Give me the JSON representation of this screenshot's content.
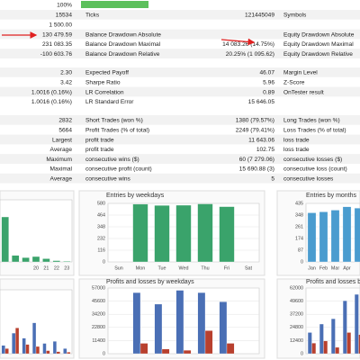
{
  "report": {
    "progress": {
      "value": 100,
      "label": "100%"
    },
    "sections": [
      [
        [
          "15534",
          "Ticks",
          "121445049",
          "Symbols"
        ],
        [
          "1 500.00",
          null,
          null,
          null
        ],
        [
          "130 479.59",
          "Balance Drawdown Absolute",
          null,
          "Equity Drawdown Absolute"
        ],
        [
          "231 083.35",
          "Balance Drawdown Maximal",
          "14 083.26 (14.75%)",
          "Equity Drawdown Maximal"
        ],
        [
          "-100 603.76",
          "Balance Drawdown Relative",
          "20.25% (1 095.62)",
          "Equity Drawdown Relative"
        ]
      ],
      [
        [
          "2.30",
          "Expected Payoff",
          "46.07",
          "Margin Level"
        ],
        [
          "3.42",
          "Sharpe Ratio",
          "5.96",
          "Z-Score"
        ],
        [
          "1.0016 (0.16%)",
          "LR Correlation",
          "0.89",
          "OnTester result"
        ],
        [
          "1.0016 (0.16%)",
          "LR Standard Error",
          "15 646.05",
          null
        ]
      ],
      [
        [
          "2832",
          "Short Trades (won %)",
          "1380 (79.57%)",
          "Long Trades (won %)"
        ],
        [
          "5664",
          "Profit Trades (% of total)",
          "2249 (79.41%)",
          "Loss Trades (% of total)"
        ],
        [
          "Largest",
          "profit trade",
          "11 643.06",
          "loss trade"
        ],
        [
          "Average",
          "profit trade",
          "102.75",
          "loss trade"
        ],
        [
          "Maximum",
          "consecutive wins ($)",
          "60 (7 279.06)",
          "consecutive losses ($)"
        ],
        [
          "Maximal",
          "consecutive profit (count)",
          "15 690.88 (3)",
          "consecutive loss (count)"
        ],
        [
          "Average",
          "consecutive wins",
          "5",
          "consecutive losses"
        ]
      ]
    ]
  },
  "chart_data": [
    {
      "type": "bar",
      "categories": [
        null,
        null,
        null,
        "20",
        "21",
        "22",
        "23"
      ],
      "ylim": [
        0,
        580
      ],
      "series": [
        {
          "color": "#3aa36b",
          "values": [
            420,
            60,
            40,
            50,
            30,
            12,
            6
          ]
        }
      ]
    },
    {
      "type": "bar",
      "title": "Entries by weekdays",
      "categories": [
        "Sun",
        "Mon",
        "Tue",
        "Wed",
        "Thu",
        "Fri",
        "Sat"
      ],
      "ylim": [
        0,
        580
      ],
      "yticks": [
        0,
        116,
        232,
        348,
        464,
        580
      ],
      "grid": true,
      "series": [
        {
          "color": "#3aa36b",
          "values": [
            0,
            572,
            560,
            562,
            575,
            548,
            0
          ]
        }
      ]
    },
    {
      "type": "bar",
      "title": "Entries by months",
      "categories": [
        "Jan",
        "Feb",
        "Mar",
        "Apr",
        null
      ],
      "ylim": [
        0,
        435
      ],
      "yticks": [
        0,
        87,
        174,
        261,
        348,
        435
      ],
      "grid": true,
      "series": [
        {
          "color": "#4a9ccf",
          "values": [
            365,
            372,
            385,
            410,
            400
          ]
        }
      ]
    },
    {
      "type": "bar",
      "categories": [
        null,
        null,
        null,
        null,
        null,
        null,
        null
      ],
      "ylim": [
        0,
        62000
      ],
      "series": [
        {
          "color": "#4a6fb5",
          "values": [
            8000,
            20000,
            15000,
            30000,
            10000,
            12000,
            5000
          ]
        },
        {
          "color": "#b8402e",
          "values": [
            5000,
            25000,
            9000,
            7000,
            3000,
            2000,
            1500
          ]
        }
      ]
    },
    {
      "type": "bar",
      "title": "Profits and losses by weekdays",
      "categories": [
        null,
        null,
        null,
        null,
        null,
        null,
        null
      ],
      "ylim": [
        0,
        57000
      ],
      "yticks": [
        0,
        11400,
        22800,
        34200,
        45600,
        57000
      ],
      "grid": true,
      "series": [
        {
          "color": "#4a6fb5",
          "values": [
            0,
            53000,
            43000,
            55000,
            53000,
            45000,
            0
          ]
        },
        {
          "color": "#b8402e",
          "values": [
            0,
            9000,
            4000,
            3000,
            20000,
            9000,
            0
          ]
        }
      ]
    },
    {
      "type": "bar",
      "title": "Profits and losses by months",
      "categories": [
        null,
        null,
        null,
        null,
        null
      ],
      "ylim": [
        0,
        62000
      ],
      "yticks": [
        0,
        12400,
        24800,
        37200,
        49600,
        62000
      ],
      "grid": true,
      "series": [
        {
          "color": "#4a6fb5",
          "values": [
            20000,
            28000,
            33000,
            50000,
            56000
          ]
        },
        {
          "color": "#b8402e",
          "values": [
            10000,
            12000,
            6000,
            20000,
            18000
          ]
        }
      ]
    }
  ]
}
